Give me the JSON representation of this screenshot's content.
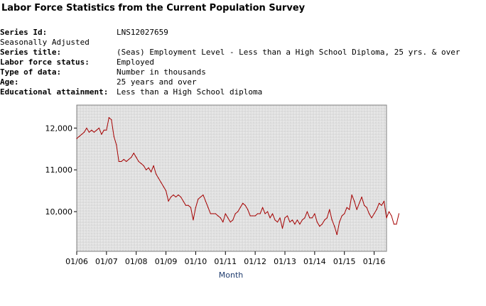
{
  "page_title": "Labor Force Statistics from the Current Population Survey",
  "metadata": [
    {
      "label": "Series Id:",
      "value": "LNS12027659",
      "bold": true
    },
    {
      "label": "Seasonally Adjusted",
      "value": "",
      "bold": false
    },
    {
      "label": "Series title:",
      "value": "(Seas) Employment Level - Less than a High School Diploma, 25 yrs. & over",
      "bold": true
    },
    {
      "label": "Labor force status:",
      "value": "Employed",
      "bold": true
    },
    {
      "label": "Type of data:",
      "value": "Number in thousands",
      "bold": true
    },
    {
      "label": "Age:",
      "value": "25 years and over",
      "bold": true
    },
    {
      "label": "Educational attainment:",
      "value": "Less than a High School diploma",
      "bold": true
    }
  ],
  "chart_data": {
    "type": "line",
    "title": "",
    "xlabel": "Month",
    "ylabel": "",
    "x_tick_labels": [
      "01/06",
      "01/07",
      "01/08",
      "01/09",
      "01/10",
      "01/11",
      "01/12",
      "01/13",
      "01/14",
      "01/15",
      "01/16"
    ],
    "y_tick_labels": [
      "10,000",
      "11,000",
      "12,000"
    ],
    "y_ticks": [
      10000,
      11000,
      12000
    ],
    "ylim": [
      9050,
      12550
    ],
    "x_start": "2006-01",
    "grid": true,
    "colors": {
      "line": "#a50000",
      "plot_bg": "#d9d9d9",
      "grid": "#ffffff",
      "xlabel": "#1f3c6e"
    },
    "series": [
      {
        "name": "",
        "values": [
          11750,
          11800,
          11850,
          11900,
          12000,
          11900,
          11950,
          11900,
          11950,
          12000,
          11850,
          11950,
          11950,
          12250,
          12200,
          11800,
          11600,
          11200,
          11200,
          11250,
          11200,
          11250,
          11300,
          11400,
          11300,
          11200,
          11150,
          11100,
          11000,
          11050,
          10950,
          11100,
          10900,
          10800,
          10700,
          10600,
          10500,
          10250,
          10350,
          10400,
          10350,
          10400,
          10350,
          10250,
          10150,
          10150,
          10100,
          9800,
          10100,
          10300,
          10350,
          10400,
          10250,
          10100,
          9950,
          9950,
          9950,
          9900,
          9850,
          9750,
          9950,
          9850,
          9750,
          9800,
          9950,
          10000,
          10100,
          10200,
          10150,
          10050,
          9900,
          9900,
          9900,
          9950,
          9950,
          10100,
          9950,
          10000,
          9850,
          9950,
          9800,
          9750,
          9850,
          9600,
          9850,
          9900,
          9750,
          9800,
          9700,
          9800,
          9700,
          9800,
          9850,
          10000,
          9850,
          9850,
          9950,
          9750,
          9650,
          9700,
          9800,
          9850,
          10050,
          9800,
          9650,
          9450,
          9750,
          9900,
          9950,
          10100,
          10050,
          10400,
          10250,
          10050,
          10200,
          10350,
          10150,
          10100,
          9950,
          9850,
          9950,
          10050,
          10200,
          10150,
          10250,
          9850,
          10000,
          9900,
          9700,
          9700,
          9950
        ]
      }
    ]
  }
}
